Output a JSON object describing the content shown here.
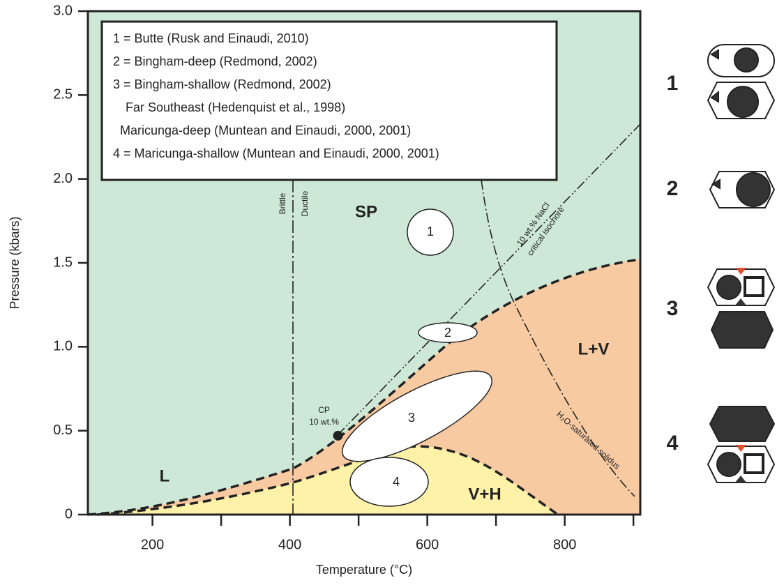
{
  "chart_data": {
    "type": "phase-diagram",
    "xlabel": "Temperature (°C)",
    "ylabel": "Pressure (kbars)",
    "xlim": [
      106,
      910
    ],
    "ylim": [
      0,
      3
    ],
    "xticks": [
      200,
      400,
      600,
      800
    ],
    "xminor_ticks": [
      300,
      500,
      700,
      900
    ],
    "yticks": [
      0,
      0.5,
      {
        "value": 1,
        "label": "1.0"
      },
      1.5,
      {
        "value": 2,
        "label": "2.0"
      },
      2.5,
      {
        "value": 3,
        "label": "3.0"
      }
    ],
    "legend_lines": [
      "1 = Butte (Rusk and Einaudi, 2010)",
      "2 = Bingham-deep (Redmond, 2002)",
      "3 = Bingham-shallow (Redmond, 2002)",
      "Far Southeast (Hedenquist et al., 1998)",
      "Maricunga-deep (Muntean and  Einaudi, 2000, 2001)",
      "4 = Maricunga-shallow (Muntean and Einaudi, 2000, 2001)"
    ],
    "region_labels": [
      "SP",
      "L",
      "L+V",
      "V+H"
    ],
    "line_labels": [
      "Brittle",
      "Ductile",
      "10 wt.% NaCl",
      "critical isochore",
      "H₂O-saturated solidus"
    ],
    "critical_point": {
      "label": [
        "CP",
        "10 wt.%"
      ],
      "x": 470,
      "y": 0.47
    },
    "inclusion_labels": [
      "1",
      "2",
      "3",
      "4"
    ],
    "icon_labels": [
      "1",
      "2",
      "3",
      "4"
    ]
  }
}
